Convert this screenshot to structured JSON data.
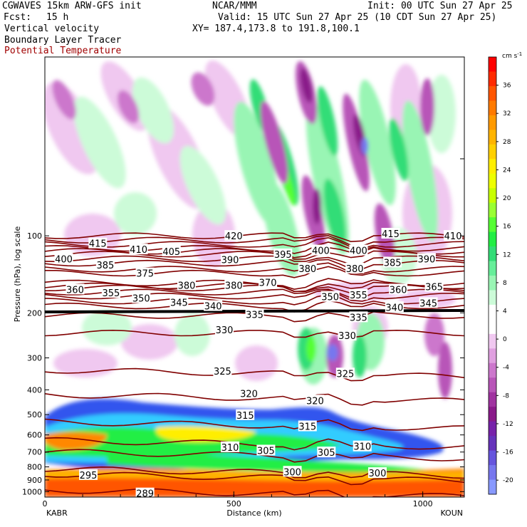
{
  "header": {
    "model": "CGWAVES 15km ARW-GFS init",
    "org": "NCAR/MMM",
    "init": "Init: 00 UTC Sun 27 Apr 25",
    "fcst_label": "Fcst:",
    "fcst_value": "15 h",
    "valid": "Valid: 15 UTC Sun 27 Apr 25 (10 CDT Sun 27 Apr 25)",
    "xy": "XY= 187.4,173.8 to 191.8,100.1",
    "field1": "Vertical velocity",
    "field2": "Boundary Layer Tracer",
    "field3": "Potential Temperature"
  },
  "colors": {
    "theta_contour": "#800000",
    "field3_text": "#a00000"
  },
  "chart_data": {
    "type": "heatmap",
    "xlabel": "Distance (km)",
    "ylabel": "Pressure (hPa), log scale",
    "x_range": [
      0,
      1110
    ],
    "y_range": [
      1050,
      20
    ],
    "y_scale": "log",
    "x_ticks": [
      "0",
      "500",
      "1000"
    ],
    "x_tick_values": [
      0,
      500,
      1000
    ],
    "y_ticks": [
      "100",
      "200",
      "300",
      "400",
      "500",
      "600",
      "700",
      "800",
      "900",
      "1000"
    ],
    "y_tick_values": [
      100,
      200,
      300,
      400,
      500,
      600,
      700,
      800,
      900,
      1000
    ],
    "endpoint_left": "KABR",
    "endpoint_right": "KOUN",
    "colorbar": {
      "units": "cm s",
      "units_exp": "-1",
      "labels": [
        "36",
        "32",
        "28",
        "24",
        "20",
        "16",
        "12",
        "8",
        "4",
        "0",
        "-4",
        "-8",
        "-12",
        "-16",
        "-20"
      ],
      "label_values": [
        36,
        32,
        28,
        24,
        20,
        16,
        12,
        8,
        4,
        0,
        -4,
        -8,
        -12,
        -16,
        -20
      ],
      "colors": [
        "#ff0000",
        "#ff2a00",
        "#ff5500",
        "#ff7a00",
        "#ff9a00",
        "#ffb400",
        "#ffd000",
        "#ffee00",
        "#eeff00",
        "#c8ff00",
        "#99ff33",
        "#55ff33",
        "#22ee44",
        "#33dd77",
        "#66ee99",
        "#99f5b4",
        "#ccfbd8",
        "#ffffff",
        "#ffffff",
        "#f0c8f0",
        "#e0a0e0",
        "#cc77cc",
        "#b855b8",
        "#a033a0",
        "#8a1a8a",
        "#7722aa",
        "#6633bb",
        "#6655dd",
        "#7777ee",
        "#8899ff"
      ]
    },
    "theta_labels": [
      {
        "text": "415",
        "x": 140,
        "p": 107
      },
      {
        "text": "410",
        "x": 248,
        "p": 113
      },
      {
        "text": "405",
        "x": 335,
        "p": 115
      },
      {
        "text": "420",
        "x": 500,
        "p": 100
      },
      {
        "text": "415",
        "x": 915,
        "p": 98
      },
      {
        "text": "410",
        "x": 1080,
        "p": 100
      },
      {
        "text": "400",
        "x": 50,
        "p": 123
      },
      {
        "text": "385",
        "x": 160,
        "p": 130
      },
      {
        "text": "390",
        "x": 490,
        "p": 124
      },
      {
        "text": "395",
        "x": 630,
        "p": 118
      },
      {
        "text": "400",
        "x": 730,
        "p": 114
      },
      {
        "text": "400",
        "x": 830,
        "p": 114
      },
      {
        "text": "385",
        "x": 920,
        "p": 127
      },
      {
        "text": "390",
        "x": 1010,
        "p": 123
      },
      {
        "text": "375",
        "x": 265,
        "p": 140
      },
      {
        "text": "380",
        "x": 695,
        "p": 134
      },
      {
        "text": "380",
        "x": 820,
        "p": 134
      },
      {
        "text": "360",
        "x": 80,
        "p": 162
      },
      {
        "text": "355",
        "x": 175,
        "p": 167
      },
      {
        "text": "350",
        "x": 255,
        "p": 175
      },
      {
        "text": "345",
        "x": 355,
        "p": 182
      },
      {
        "text": "340",
        "x": 445,
        "p": 188
      },
      {
        "text": "335",
        "x": 555,
        "p": 203
      },
      {
        "text": "330",
        "x": 475,
        "p": 233
      },
      {
        "text": "380",
        "x": 375,
        "p": 156
      },
      {
        "text": "370",
        "x": 590,
        "p": 152
      },
      {
        "text": "380",
        "x": 500,
        "p": 156
      },
      {
        "text": "350",
        "x": 755,
        "p": 173
      },
      {
        "text": "355",
        "x": 830,
        "p": 170
      },
      {
        "text": "360",
        "x": 935,
        "p": 162
      },
      {
        "text": "365",
        "x": 1030,
        "p": 158
      },
      {
        "text": "340",
        "x": 925,
        "p": 190
      },
      {
        "text": "345",
        "x": 1015,
        "p": 183
      },
      {
        "text": "335",
        "x": 830,
        "p": 208
      },
      {
        "text": "330",
        "x": 800,
        "p": 245
      },
      {
        "text": "325",
        "x": 470,
        "p": 338
      },
      {
        "text": "325",
        "x": 795,
        "p": 345
      },
      {
        "text": "320",
        "x": 540,
        "p": 413
      },
      {
        "text": "320",
        "x": 715,
        "p": 440
      },
      {
        "text": "315",
        "x": 530,
        "p": 502
      },
      {
        "text": "315",
        "x": 695,
        "p": 555
      },
      {
        "text": "310",
        "x": 490,
        "p": 670
      },
      {
        "text": "305",
        "x": 585,
        "p": 690
      },
      {
        "text": "305",
        "x": 745,
        "p": 702
      },
      {
        "text": "310",
        "x": 840,
        "p": 665
      },
      {
        "text": "300",
        "x": 655,
        "p": 835
      },
      {
        "text": "300",
        "x": 880,
        "p": 845
      },
      {
        "text": "295",
        "x": 115,
        "p": 860
      },
      {
        "text": "289",
        "x": 265,
        "p": 1015
      }
    ]
  }
}
